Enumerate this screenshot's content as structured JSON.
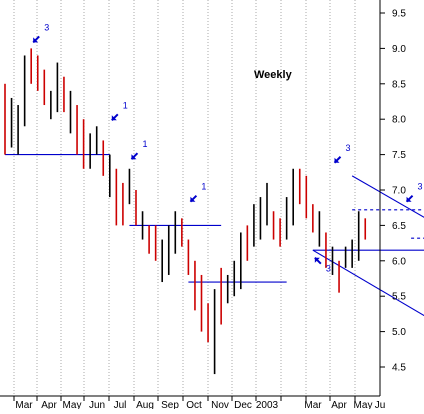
{
  "chart_data": {
    "type": "ohlc",
    "title": "Weekly",
    "ylim": [
      4.3,
      9.7
    ],
    "yticks": [
      "4.5",
      "5.0",
      "5.5",
      "6.0",
      "6.5",
      "7.0",
      "7.5",
      "8.0",
      "8.5",
      "9.0",
      "9.5"
    ],
    "month_labels": [
      "Mar",
      "Apr",
      "May",
      "Jun",
      "Jul",
      "Aug",
      "Sep",
      "Oct",
      "Nov",
      "Dec",
      "2003",
      "Mar",
      "Apr",
      "May",
      "Ju"
    ],
    "grid": "vertical dotted, monthly",
    "axis_position": "right",
    "colors": {
      "up": "#000000",
      "down": "#cc0000",
      "lines": "#0000cc",
      "grid": "#aaaaaa"
    },
    "bars": [
      {
        "high": 8.5,
        "low": 7.5,
        "dir": "down"
      },
      {
        "high": 8.3,
        "low": 7.6,
        "dir": "up"
      },
      {
        "high": 8.2,
        "low": 7.5,
        "dir": "up"
      },
      {
        "high": 8.9,
        "low": 7.9,
        "dir": "up"
      },
      {
        "high": 9.0,
        "low": 8.5,
        "dir": "down"
      },
      {
        "high": 8.9,
        "low": 8.4,
        "dir": "down"
      },
      {
        "high": 8.7,
        "low": 8.2,
        "dir": "down"
      },
      {
        "high": 8.4,
        "low": 8.0,
        "dir": "up"
      },
      {
        "high": 8.8,
        "low": 8.1,
        "dir": "up"
      },
      {
        "high": 8.6,
        "low": 8.1,
        "dir": "down"
      },
      {
        "high": 8.4,
        "low": 7.8,
        "dir": "up"
      },
      {
        "high": 8.2,
        "low": 7.5,
        "dir": "down"
      },
      {
        "high": 8.0,
        "low": 7.3,
        "dir": "down"
      },
      {
        "high": 7.8,
        "low": 7.3,
        "dir": "up"
      },
      {
        "high": 7.9,
        "low": 7.5,
        "dir": "up"
      },
      {
        "high": 7.7,
        "low": 7.2,
        "dir": "down"
      },
      {
        "high": 7.5,
        "low": 6.9,
        "dir": "up"
      },
      {
        "high": 7.3,
        "low": 6.5,
        "dir": "down"
      },
      {
        "high": 7.1,
        "low": 6.5,
        "dir": "down"
      },
      {
        "high": 7.3,
        "low": 6.8,
        "dir": "up"
      },
      {
        "high": 7.0,
        "low": 6.5,
        "dir": "down"
      },
      {
        "high": 6.7,
        "low": 6.3,
        "dir": "up"
      },
      {
        "high": 6.5,
        "low": 6.1,
        "dir": "down"
      },
      {
        "high": 6.5,
        "low": 6.0,
        "dir": "down"
      },
      {
        "high": 6.3,
        "low": 5.7,
        "dir": "up"
      },
      {
        "high": 6.5,
        "low": 5.8,
        "dir": "up"
      },
      {
        "high": 6.7,
        "low": 6.1,
        "dir": "up"
      },
      {
        "high": 6.6,
        "low": 6.2,
        "dir": "down"
      },
      {
        "high": 6.3,
        "low": 5.8,
        "dir": "down"
      },
      {
        "high": 6.0,
        "low": 5.3,
        "dir": "down"
      },
      {
        "high": 5.8,
        "low": 5.0,
        "dir": "down"
      },
      {
        "high": 5.4,
        "low": 4.85,
        "dir": "down"
      },
      {
        "high": 5.6,
        "low": 4.4,
        "dir": "up"
      },
      {
        "high": 5.9,
        "low": 5.1,
        "dir": "down"
      },
      {
        "high": 5.8,
        "low": 5.4,
        "dir": "up"
      },
      {
        "high": 6.0,
        "low": 5.5,
        "dir": "up"
      },
      {
        "high": 6.4,
        "low": 5.6,
        "dir": "up"
      },
      {
        "high": 6.5,
        "low": 6.0,
        "dir": "down"
      },
      {
        "high": 6.8,
        "low": 6.2,
        "dir": "up"
      },
      {
        "high": 6.9,
        "low": 6.3,
        "dir": "up"
      },
      {
        "high": 7.1,
        "low": 6.5,
        "dir": "up"
      },
      {
        "high": 6.7,
        "low": 6.3,
        "dir": "down"
      },
      {
        "high": 6.6,
        "low": 6.2,
        "dir": "down"
      },
      {
        "high": 6.9,
        "low": 6.3,
        "dir": "up"
      },
      {
        "high": 7.3,
        "low": 6.5,
        "dir": "up"
      },
      {
        "high": 7.3,
        "low": 6.8,
        "dir": "down"
      },
      {
        "high": 7.2,
        "low": 6.6,
        "dir": "down"
      },
      {
        "high": 6.8,
        "low": 6.4,
        "dir": "down"
      },
      {
        "high": 6.7,
        "low": 6.2,
        "dir": "up"
      },
      {
        "high": 6.4,
        "low": 5.9,
        "dir": "down"
      },
      {
        "high": 6.2,
        "low": 5.8,
        "dir": "up"
      },
      {
        "high": 6.0,
        "low": 5.55,
        "dir": "down"
      },
      {
        "high": 6.2,
        "low": 5.9,
        "dir": "up"
      },
      {
        "high": 6.3,
        "low": 5.9,
        "dir": "up"
      },
      {
        "high": 6.7,
        "low": 6.0,
        "dir": "up"
      },
      {
        "high": 6.6,
        "low": 6.3,
        "dir": "down"
      }
    ],
    "lines": [
      {
        "type": "solid",
        "x1": 0,
        "y1": 7.5,
        "x2": 16,
        "y2": 7.5
      },
      {
        "type": "solid",
        "x1": 19,
        "y1": 6.5,
        "x2": 33,
        "y2": 6.5
      },
      {
        "type": "solid",
        "x1": 28,
        "y1": 5.7,
        "x2": 43,
        "y2": 5.7
      },
      {
        "type": "solid",
        "x1": 47,
        "y1": 6.15,
        "x2": 68,
        "y2": 6.15
      },
      {
        "type": "dashed",
        "x1": 53,
        "y1": 6.72,
        "x2": 65,
        "y2": 6.72
      },
      {
        "type": "dashed",
        "x1": 62,
        "y1": 6.32,
        "x2": 67,
        "y2": 6.32
      },
      {
        "type": "solid",
        "x1": 53,
        "y1": 7.2,
        "x2": 75.5,
        "y2": 6.0
      },
      {
        "type": "solid",
        "x1": 47,
        "y1": 6.15,
        "x2": 75.5,
        "y2": 4.6
      }
    ],
    "annotations": [
      {
        "label": "3",
        "bar": 4,
        "y": 9.0,
        "arrow_dir": "down-left"
      },
      {
        "label": "1",
        "bar": 16,
        "y": 7.9,
        "arrow_dir": "down-left"
      },
      {
        "label": "1",
        "bar": 19,
        "y": 7.35,
        "arrow_dir": "down-left"
      },
      {
        "label": "1",
        "bar": 28,
        "y": 6.75,
        "arrow_dir": "down-left"
      },
      {
        "label": "3",
        "bar": 50,
        "y": 7.3,
        "arrow_dir": "down-left"
      },
      {
        "label": "3",
        "bar": 47,
        "y": 6.1,
        "arrow_dir": "up-left"
      },
      {
        "label": "3",
        "bar": 61,
        "y": 6.75,
        "arrow_dir": "down-left"
      }
    ]
  }
}
